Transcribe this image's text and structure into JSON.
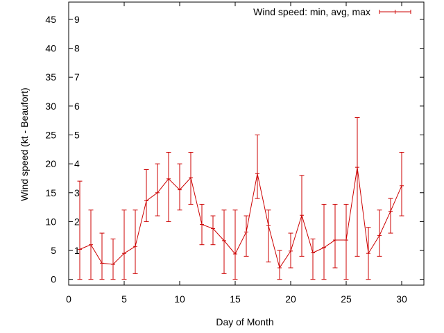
{
  "chart_data": {
    "type": "line",
    "title": "",
    "xlabel": "Day of Month",
    "ylabel": "Wind speed (kt - Beaufort)",
    "xlim": [
      0,
      32
    ],
    "ylim": [
      -1,
      48
    ],
    "x_ticks": [
      0,
      5,
      10,
      15,
      20,
      25,
      30
    ],
    "y_ticks": [
      0,
      5,
      10,
      15,
      20,
      25,
      30,
      35,
      40,
      45
    ],
    "grid": false,
    "legend_position": "top-right",
    "series": [
      {
        "name": "Wind speed: min, avg, max",
        "color": "#cc0000",
        "x": [
          1,
          2,
          3,
          4,
          5,
          6,
          7,
          8,
          9,
          10,
          11,
          12,
          13,
          14,
          15,
          16,
          17,
          18,
          19,
          20,
          21,
          22,
          23,
          24,
          25,
          26,
          27,
          28,
          29,
          30
        ],
        "min": [
          0,
          0,
          0,
          0,
          0,
          1,
          10,
          11,
          10,
          12,
          13,
          6,
          6,
          1,
          0,
          4,
          14,
          3,
          0,
          2,
          4,
          0,
          0,
          2,
          0,
          4,
          0,
          4,
          8,
          11
        ],
        "avg": [
          5.2,
          6.0,
          2.8,
          2.6,
          4.5,
          5.7,
          13.6,
          15.0,
          17.4,
          15.5,
          17.6,
          9.5,
          8.8,
          6.7,
          4.4,
          8.2,
          18.3,
          9.3,
          2.0,
          4.9,
          11.1,
          4.6,
          5.5,
          6.8,
          6.8,
          19.4,
          4.5,
          7.6,
          11.8,
          16.2
        ],
        "max": [
          17,
          12,
          8,
          7,
          12,
          12,
          19,
          20,
          22,
          20,
          22,
          13,
          11,
          12,
          12,
          11,
          25,
          12,
          5,
          8,
          18,
          7,
          13,
          13,
          13,
          28,
          9,
          12,
          14,
          22
        ]
      }
    ],
    "beaufort_labels": [
      {
        "value": 1,
        "label": "1"
      },
      {
        "value": 2,
        "label": "2"
      },
      {
        "value": 3,
        "label": "3"
      },
      {
        "value": 4,
        "label": "4"
      },
      {
        "value": 5,
        "label": "5"
      },
      {
        "value": 6,
        "label": "6"
      },
      {
        "value": 7,
        "label": "7"
      },
      {
        "value": 8,
        "label": "8"
      },
      {
        "value": 9,
        "label": "9"
      }
    ]
  }
}
